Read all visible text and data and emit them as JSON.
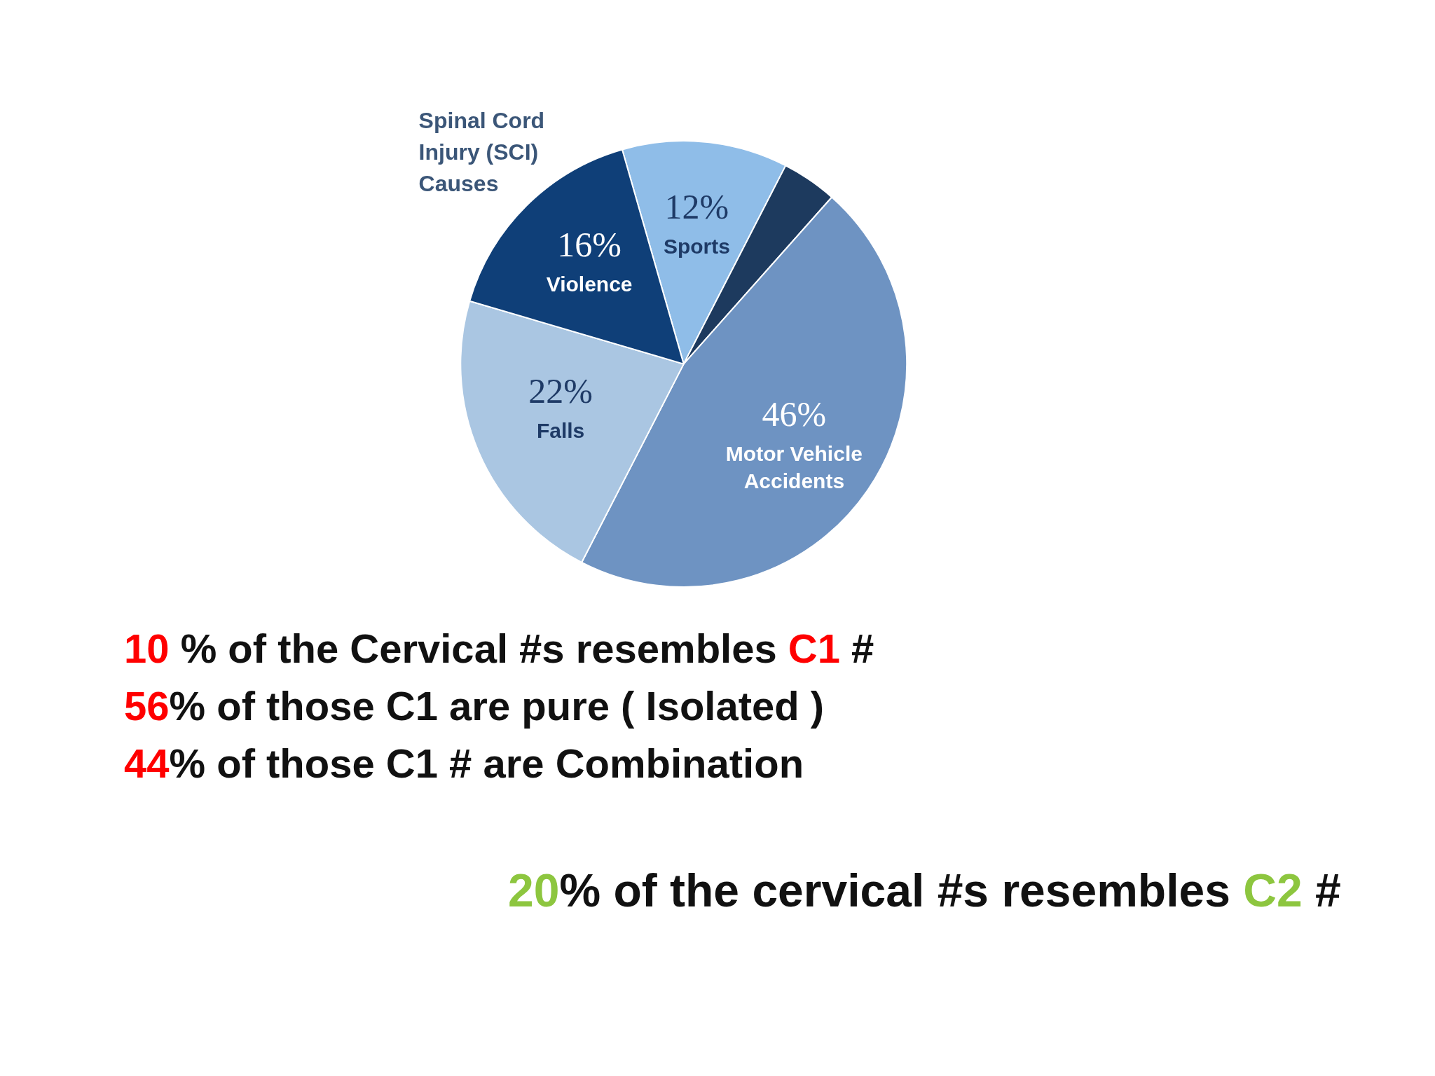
{
  "chart_data": {
    "type": "pie",
    "title": "Spinal Cord\nInjury (SCI)\nCauses",
    "categories": [
      "Sports",
      null,
      "Motor Vehicle\nAccidents",
      "Falls",
      "Violence"
    ],
    "values": [
      12,
      4,
      46,
      22,
      16
    ],
    "value_labels": [
      "12%",
      null,
      "46%",
      "22%",
      "16%"
    ],
    "colors": [
      "#8fbde8",
      "#1d3a5e",
      "#6e93c2",
      "#aac6e2",
      "#0f3f78"
    ],
    "annotations": [
      "10 % of the Cervical #s resembles C1 #",
      "56% of those C1 are pure ( Isolated )",
      "44% of those C1 # are Combination",
      "20% of the cervical #s resembles C2 #"
    ]
  }
}
